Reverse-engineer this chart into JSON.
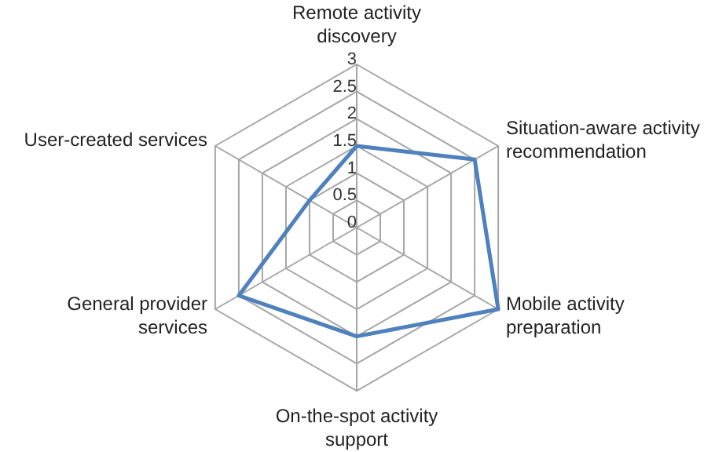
{
  "chart_data": {
    "type": "radar",
    "categories": [
      "Remote activity discovery",
      "Situation-aware activity recommendation",
      "Mobile activity preparation",
      "On-the-spot activity support",
      "General provider services",
      "User-created services"
    ],
    "series": [
      {
        "color": "#4f81bd",
        "values": [
          1.5,
          2.5,
          3,
          2,
          2.5,
          1
        ]
      }
    ],
    "ylim": [
      0,
      3
    ],
    "yticks": [
      0,
      0.5,
      1,
      1.5,
      2,
      2.5,
      3
    ],
    "grid": true,
    "legend": false,
    "marker": "none"
  }
}
